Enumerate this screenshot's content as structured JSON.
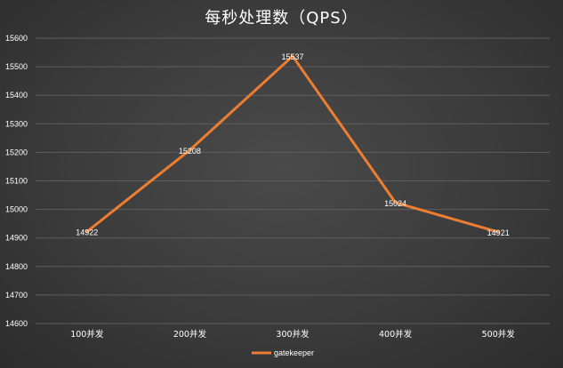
{
  "chart_data": {
    "type": "line",
    "title": "每秒处理数（QPS）",
    "categories": [
      "100并发",
      "200并发",
      "300并发",
      "400并发",
      "500并发"
    ],
    "series": [
      {
        "name": "gatekeeper",
        "values": [
          14922,
          15208,
          15537,
          15024,
          14921
        ]
      }
    ],
    "ylim": [
      14600,
      15600
    ],
    "yticks": [
      14600,
      14700,
      14800,
      14900,
      15000,
      15100,
      15200,
      15300,
      15400,
      15500,
      15600
    ],
    "grid": true,
    "legend": "bottom-center",
    "line_color": "#ed7d31"
  }
}
